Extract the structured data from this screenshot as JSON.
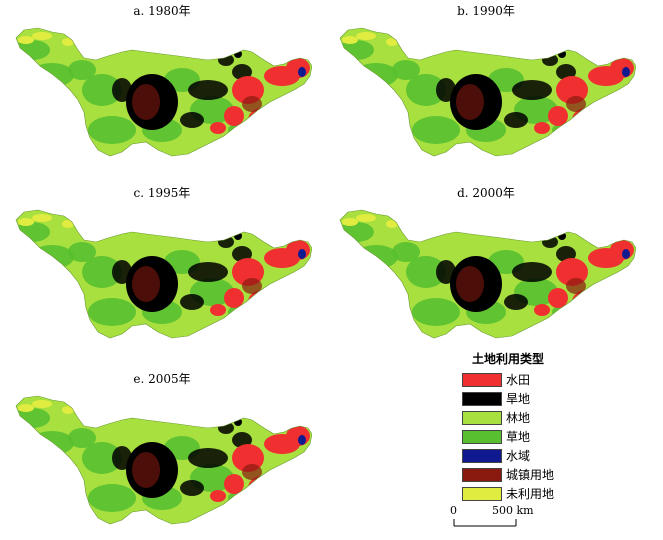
{
  "panels": [
    {
      "title": "a. 1980年"
    },
    {
      "title": "b. 1990年"
    },
    {
      "title": "c. 1995年"
    },
    {
      "title": "d. 2000年"
    },
    {
      "title": "e. 2005年"
    }
  ],
  "legend": {
    "title": "土地利用类型",
    "items": [
      {
        "label": "水田",
        "color": "#f03030"
      },
      {
        "label": "旱地",
        "color": "#000000"
      },
      {
        "label": "林地",
        "color": "#a8e040"
      },
      {
        "label": "草地",
        "color": "#58c030"
      },
      {
        "label": "水域",
        "color": "#101a90"
      },
      {
        "label": "城镇用地",
        "color": "#8a1a10"
      },
      {
        "label": "未利用地",
        "color": "#e0ec40"
      }
    ]
  },
  "scalebar": {
    "start": "0",
    "end": "500 km"
  }
}
